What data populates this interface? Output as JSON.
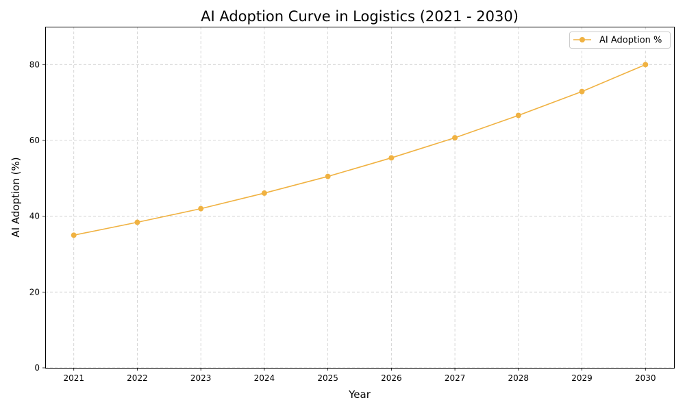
{
  "chart_data": {
    "type": "line",
    "title": "AI Adoption Curve in Logistics (2021 - 2030)",
    "xlabel": "Year",
    "ylabel": "AI Adoption (%)",
    "x": [
      2021,
      2022,
      2023,
      2024,
      2025,
      2026,
      2027,
      2028,
      2029,
      2030
    ],
    "series": [
      {
        "name": "AI Adoption %",
        "color": "#F0B242",
        "values": [
          35.0,
          38.4,
          42.0,
          46.1,
          50.5,
          55.4,
          60.7,
          66.6,
          72.9,
          80.0
        ]
      }
    ],
    "xlim": [
      2020.55,
      2030.45
    ],
    "ylim": [
      0,
      90
    ],
    "yticks": [
      0,
      20,
      40,
      60,
      80
    ],
    "grid": true,
    "legend": "top-right"
  }
}
